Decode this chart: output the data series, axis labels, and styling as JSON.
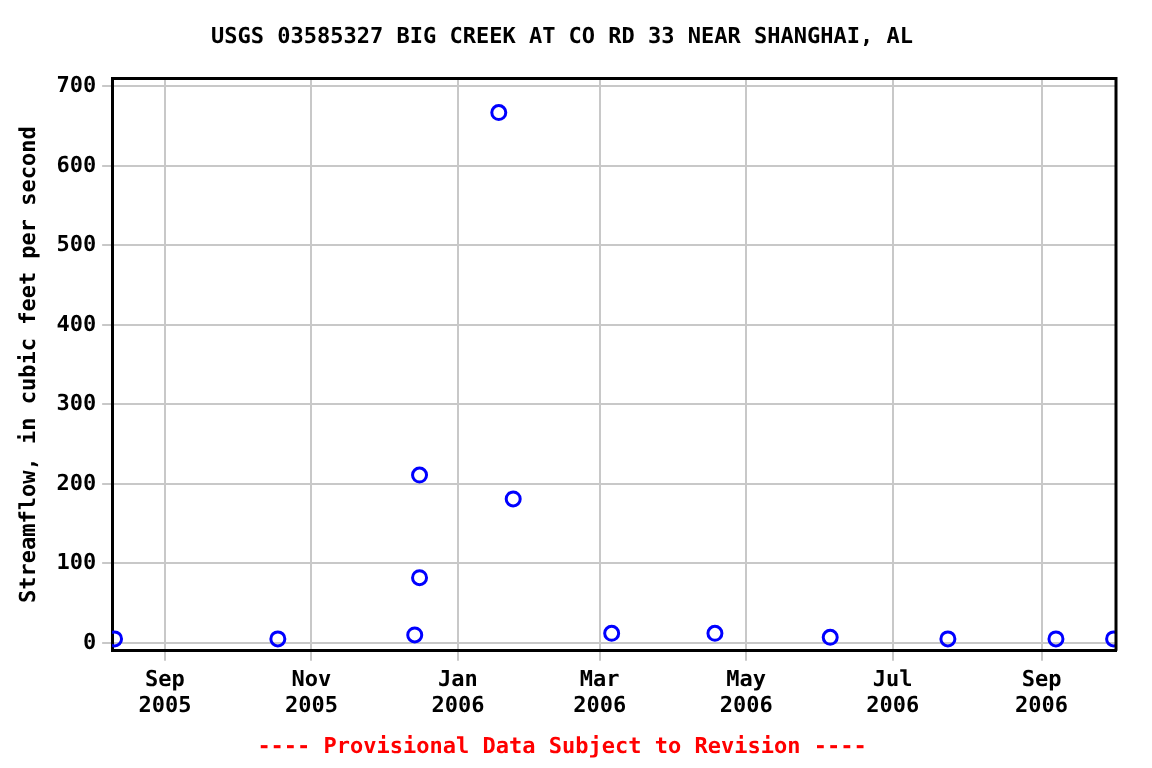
{
  "chart_data": {
    "type": "scatter",
    "title": "USGS 03585327 BIG CREEK AT CO RD 33 NEAR SHANGHAI, AL",
    "ylabel": "Streamflow, in cubic feet per second",
    "annotations": [
      "---- Provisional Data Subject to Revision ----"
    ],
    "x": [
      "2005-08-11",
      "2005-10-18",
      "2005-12-14",
      "2005-12-16",
      "2005-12-16",
      "2006-01-18",
      "2006-01-24",
      "2006-03-06",
      "2006-04-18",
      "2006-06-05",
      "2006-07-24",
      "2006-09-07",
      "2006-10-01"
    ],
    "series": [
      {
        "color": "#0000ff",
        "values": [
          5,
          5,
          10,
          82,
          211,
          667,
          181,
          12,
          12,
          7,
          5,
          5,
          5
        ]
      }
    ],
    "xlim": [
      "2005-08-10",
      "2006-10-02"
    ],
    "xticks": [
      {
        "value": "2005-09-01",
        "label": "Sep\n2005"
      },
      {
        "value": "2005-11-01",
        "label": "Nov\n2005"
      },
      {
        "value": "2006-01-01",
        "label": "Jan\n2006"
      },
      {
        "value": "2006-03-01",
        "label": "Mar\n2006"
      },
      {
        "value": "2006-05-01",
        "label": "May\n2006"
      },
      {
        "value": "2006-07-01",
        "label": "Jul\n2006"
      },
      {
        "value": "2006-09-01",
        "label": "Sep\n2006"
      }
    ],
    "ylim": [
      -10,
      710
    ],
    "yticks": [
      0,
      100,
      200,
      300,
      400,
      500,
      600,
      700
    ],
    "grid": true,
    "legend": false,
    "marker": "circle"
  }
}
